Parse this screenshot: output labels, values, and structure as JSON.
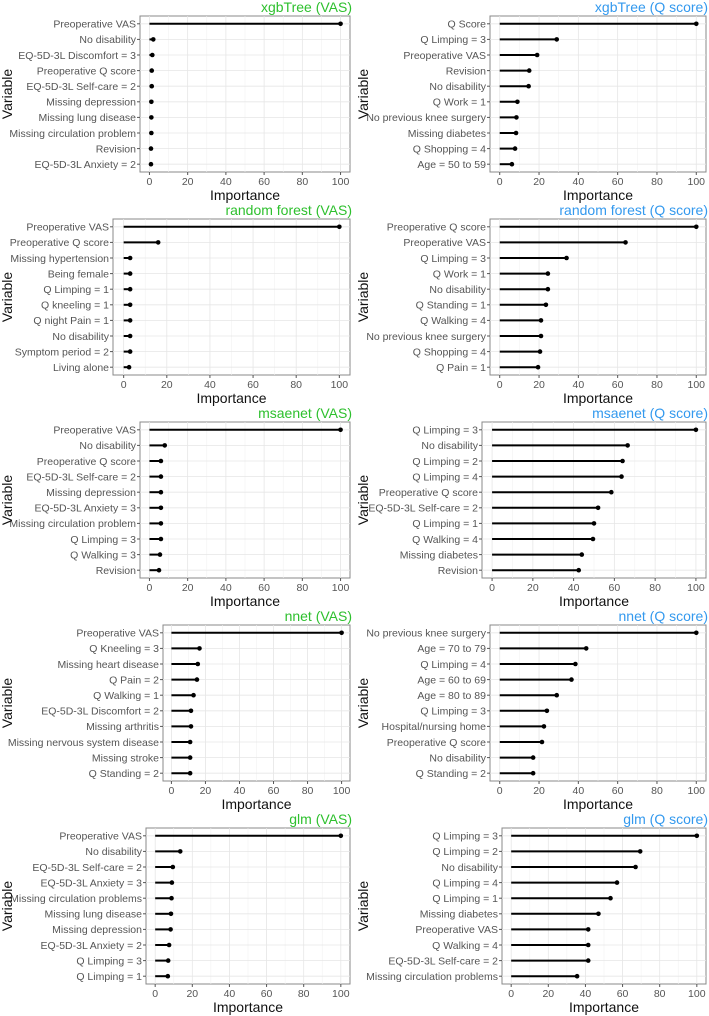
{
  "chart_data": [
    {
      "type": "lollipop",
      "title": "xgbTree (VAS)",
      "title_color": "#2ec02e",
      "xlabel": "Importance",
      "ylabel": "Variable",
      "xlim": [
        0,
        100
      ],
      "xticks": [
        0,
        20,
        40,
        60,
        80,
        100
      ],
      "categories": [
        "Preoperative VAS",
        "No disability",
        "EQ-5D-3L Discomfort = 3",
        "Preoperative Q score",
        "EQ-5D-3L Self-care = 2",
        "Missing depression",
        "Missing lung disease",
        "Missing circulation problem",
        "Revision",
        "EQ-5D-3L Anxiety = 2"
      ],
      "values": [
        100,
        2,
        1.5,
        1.2,
        1.2,
        1,
        1,
        1,
        0.8,
        0.8
      ]
    },
    {
      "type": "lollipop",
      "title": "xgbTree (Q score)",
      "title_color": "#3399ee",
      "xlabel": "Importance",
      "ylabel": "Variable",
      "xlim": [
        0,
        100
      ],
      "xticks": [
        0,
        20,
        40,
        60,
        80,
        100
      ],
      "categories": [
        "Q Score",
        "Q Limping = 3",
        "Preoperative VAS",
        "Revision",
        "No disability",
        "Q Work = 1",
        "No previous knee surgery",
        "Missing diabetes",
        "Q Shopping = 4",
        "Age = 50 to 59"
      ],
      "values": [
        100,
        29,
        19.033,
        15,
        14.7,
        9,
        8.5,
        8.3,
        7.8,
        6.2
      ]
    },
    {
      "type": "lollipop",
      "title": "random forest (VAS)",
      "title_color": "#2ec02e",
      "xlabel": "Importance",
      "ylabel": "Variable",
      "xlim": [
        0,
        100
      ],
      "xticks": [
        0,
        20,
        40,
        60,
        80,
        100
      ],
      "categories": [
        "Preoperative VAS",
        "Preoperative Q score",
        "Missing hypertension",
        "Being female",
        "Q Limping = 1",
        "Q kneeling = 1",
        "Q night Pain = 1",
        "No disability",
        "Symptom period = 2",
        "Living alone"
      ],
      "values": [
        100,
        16,
        3,
        3,
        3,
        3,
        3,
        3,
        3,
        2.5
      ]
    },
    {
      "type": "lollipop",
      "title": "random forest (Q score)",
      "title_color": "#3399ee",
      "xlabel": "Importance",
      "ylabel": "Variable",
      "xlim": [
        0,
        100
      ],
      "xticks": [
        0,
        20,
        40,
        60,
        80,
        100
      ],
      "categories": [
        "Preoperative Q score",
        "Preoperative VAS",
        "Q Limping = 3",
        "Q Work = 1",
        "No disability",
        "Q Standing = 1",
        "Q Walking = 4",
        "No previous knee surgery",
        "Q Shopping = 4",
        "Q Pain = 1"
      ],
      "values": [
        100,
        64,
        34,
        24.5,
        24.5,
        23.5,
        21,
        21,
        20.5,
        19.5
      ]
    },
    {
      "type": "lollipop",
      "title": "msaenet (VAS)",
      "title_color": "#2ec02e",
      "xlabel": "Importance",
      "ylabel": "Variable",
      "xlim": [
        0,
        100
      ],
      "xticks": [
        0,
        20,
        40,
        60,
        80,
        100
      ],
      "categories": [
        "Preoperative VAS",
        "No disability",
        "Preoperative Q score",
        "EQ-5D-3L Self-care = 2",
        "Missing depression",
        "EQ-5D-3L Anxiety = 3",
        "Missing circulation problem",
        "Q Limping = 3",
        "Q Walking = 3",
        "Revision"
      ],
      "values": [
        100,
        8,
        6,
        6,
        6,
        6,
        6,
        6,
        5.5,
        5
      ]
    },
    {
      "type": "lollipop",
      "title": "msaenet (Q score)",
      "title_color": "#3399ee",
      "xlabel": "Importance",
      "ylabel": "Variable",
      "xlim": [
        0,
        100
      ],
      "xticks": [
        0,
        20,
        40,
        60,
        80,
        100
      ],
      "categories": [
        "Q Limping = 3",
        "No disability",
        "Q Limping = 2",
        "Q Limping = 4",
        "Preoperative Q score",
        "EQ-5D-3L Self-care = 2",
        "Q Limping = 1",
        "Q Walking = 4",
        "Missing diabetes",
        "Revision"
      ],
      "values": [
        100,
        66.5,
        64,
        63.5,
        58.5,
        52,
        50,
        49.5,
        44,
        42.5
      ]
    },
    {
      "type": "lollipop",
      "title": "nnet (VAS)",
      "title_color": "#2ec02e",
      "xlabel": "Importance",
      "ylabel": "Variable",
      "xlim": [
        0,
        100
      ],
      "xticks": [
        0,
        20,
        40,
        60,
        80,
        100
      ],
      "categories": [
        "Preoperative VAS",
        "Q Kneeling = 3",
        "Missing heart disease",
        "Q Pain = 2",
        "Q Walking = 1",
        "EQ-5D-3L Discomfort = 2",
        "Missing arthritis",
        "Missing nervous system disease",
        "Missing stroke",
        "Q Standing = 2"
      ],
      "values": [
        100,
        16.5,
        15.5,
        15,
        13,
        11.5,
        11.5,
        11,
        11,
        11
      ]
    },
    {
      "type": "lollipop",
      "title": "nnet (Q score)",
      "title_color": "#3399ee",
      "xlabel": "Importance",
      "ylabel": "Variable",
      "xlim": [
        0,
        100
      ],
      "xticks": [
        0,
        20,
        40,
        60,
        80,
        100
      ],
      "categories": [
        "No previous knee surgery",
        "Age = 70 to 79",
        "Q Limping = 4",
        "Age = 60 to 69",
        "Age = 80 to 89",
        "Q Limping = 3",
        "Hospital/nursing home",
        "Preoperative Q score",
        "No disability",
        "Q Standing = 2"
      ],
      "values": [
        100,
        44,
        38.5,
        36.5,
        29,
        24,
        22.5,
        21.5,
        17,
        17
      ]
    },
    {
      "type": "lollipop",
      "title": "glm (VAS)",
      "title_color": "#2ec02e",
      "xlabel": "Importance",
      "ylabel": "Variable",
      "xlim": [
        0,
        100
      ],
      "xticks": [
        0,
        20,
        40,
        60,
        80,
        100
      ],
      "categories": [
        "Preoperative VAS",
        "No disability",
        "EQ-5D-3L Self-care = 2",
        "EQ-5D-3L Anxiety = 3",
        "Missing circulation problems",
        "Missing lung disease",
        "Missing depression",
        "EQ-5D-3L Anxiety = 2",
        "Q Limping = 3",
        "Q Limping = 1"
      ],
      "values": [
        100,
        13.5,
        9.5,
        9,
        8.8,
        8.5,
        8.3,
        7.5,
        7,
        6.8
      ]
    },
    {
      "type": "lollipop",
      "title": "glm (Q score)",
      "title_color": "#3399ee",
      "xlabel": "Importance",
      "ylabel": "Variable",
      "xlim": [
        0,
        100
      ],
      "xticks": [
        0,
        20,
        40,
        60,
        80,
        100
      ],
      "categories": [
        "Q Limping = 3",
        "Q Limping = 2",
        "No disability",
        "Q Limping = 4",
        "Q Limping = 1",
        "Missing diabetes",
        "Preoperative VAS",
        "Q Walking = 4",
        "EQ-5D-3L Self-care = 2",
        "Missing circulation problems"
      ],
      "values": [
        100,
        69.5,
        67,
        57,
        53.5,
        47,
        41.5,
        41.5,
        41.5,
        35.5
      ]
    }
  ]
}
